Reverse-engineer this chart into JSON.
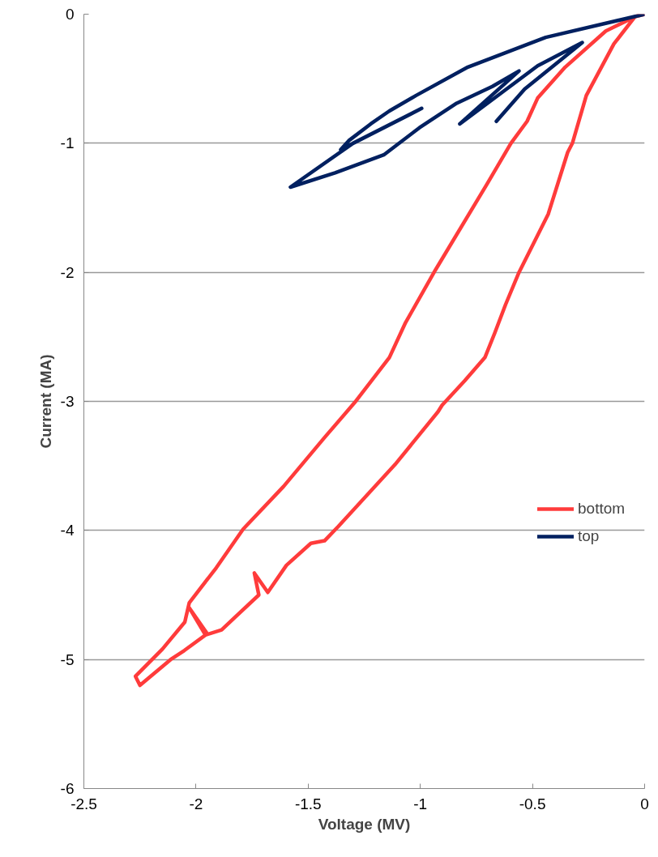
{
  "chart_data": {
    "type": "line",
    "xlabel": "Voltage (MV)",
    "ylabel": "Current (MA)",
    "xlim": [
      -2.5,
      0
    ],
    "xticks": [
      -2.5,
      -2,
      -1.5,
      -1,
      -0.5,
      0
    ],
    "ylim": [
      -6,
      0
    ],
    "yticks": [
      -6,
      -5,
      -4,
      -3,
      -2,
      -1,
      0
    ],
    "grid": "y",
    "legend": "right",
    "marker": "none",
    "line_style": "solid",
    "series": [
      {
        "name": "bottom",
        "color": "#ff3b3b",
        "x": [
          0,
          -0.043,
          -0.137,
          -0.26,
          -0.322,
          -0.343,
          -0.43,
          -0.56,
          -0.62,
          -0.668,
          -0.712,
          -0.802,
          -0.903,
          -0.921,
          -1.113,
          -1.366,
          -1.427,
          -1.488,
          -1.597,
          -1.68,
          -1.74,
          -1.72,
          -1.886,
          -1.958,
          -2.03,
          -1.95,
          -2.052,
          -2.113,
          -2.25,
          -2.27,
          -2.15,
          -2.05,
          -2.03,
          -1.91,
          -1.79,
          -1.61,
          -1.427,
          -1.293,
          -1.138,
          -1.066,
          -0.932,
          -0.704,
          -0.596,
          -0.524,
          -0.477,
          -0.354,
          -0.173,
          -0.03
        ],
        "values": [
          0,
          -0.02,
          -0.23,
          -0.63,
          -1.0,
          -1.07,
          -1.55,
          -2.0,
          -2.25,
          -2.47,
          -2.66,
          -2.84,
          -3.03,
          -3.08,
          -3.49,
          -3.97,
          -4.08,
          -4.1,
          -4.27,
          -4.48,
          -4.33,
          -4.5,
          -4.77,
          -4.81,
          -4.6,
          -4.8,
          -4.93,
          -5.0,
          -5.2,
          -5.13,
          -4.92,
          -4.71,
          -4.56,
          -4.29,
          -3.99,
          -3.66,
          -3.28,
          -3.01,
          -2.66,
          -2.39,
          -1.98,
          -1.32,
          -1.0,
          -0.83,
          -0.65,
          -0.41,
          -0.13,
          -0.01
        ]
      },
      {
        "name": "top",
        "color": "#002060",
        "x": [
          0,
          -0.441,
          -0.788,
          -1.019,
          -1.138,
          -1.221,
          -1.319,
          -1.355,
          -0.994,
          -1.3,
          -1.579,
          -1.38,
          -1.163,
          -1.004,
          -0.838,
          -0.679,
          -0.56,
          -0.824,
          -0.477,
          -0.278,
          -0.535,
          -0.661
        ],
        "values": [
          0,
          -0.18,
          -0.41,
          -0.63,
          -0.75,
          -0.85,
          -0.98,
          -1.05,
          -0.73,
          -1.0,
          -1.34,
          -1.23,
          -1.09,
          -0.88,
          -0.69,
          -0.56,
          -0.44,
          -0.85,
          -0.4,
          -0.22,
          -0.58,
          -0.83
        ]
      }
    ]
  }
}
